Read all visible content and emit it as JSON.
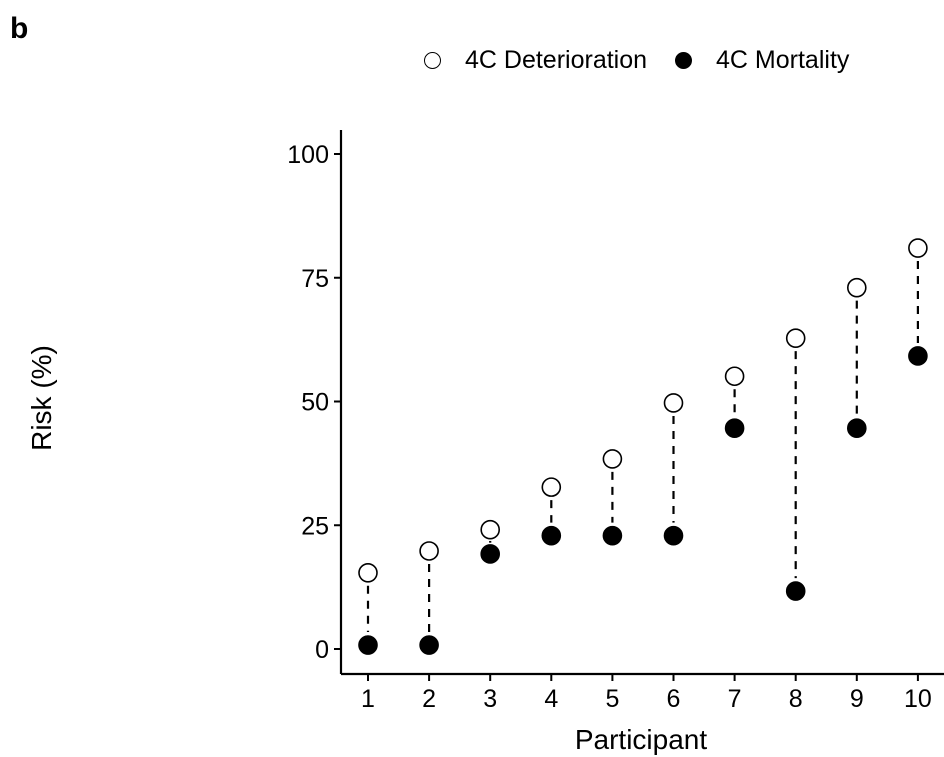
{
  "panel_label": "b",
  "chart_data": {
    "type": "scatter",
    "title": "",
    "xlabel": "Participant",
    "ylabel": "Risk (%)",
    "categories": [
      "1",
      "2",
      "3",
      "4",
      "5",
      "6",
      "7",
      "8",
      "9",
      "10"
    ],
    "ylim": [
      -5,
      105
    ],
    "yticks": [
      0,
      25,
      50,
      75,
      100
    ],
    "grid": false,
    "legend_position": "top",
    "series": [
      {
        "name": "4C Deterioration",
        "marker": "open-circle",
        "color": "#ffffff",
        "values": [
          15.4,
          19.8,
          24.1,
          32.7,
          38.4,
          49.7,
          55.1,
          62.8,
          73.0,
          81.0
        ]
      },
      {
        "name": "4C Mortality",
        "marker": "filled-circle",
        "color": "#000000",
        "values": [
          0.8,
          0.8,
          19.2,
          22.9,
          22.9,
          22.9,
          44.6,
          11.7,
          44.6,
          59.2
        ]
      }
    ],
    "connectors": "dashed vertical line between the two values of each participant"
  }
}
